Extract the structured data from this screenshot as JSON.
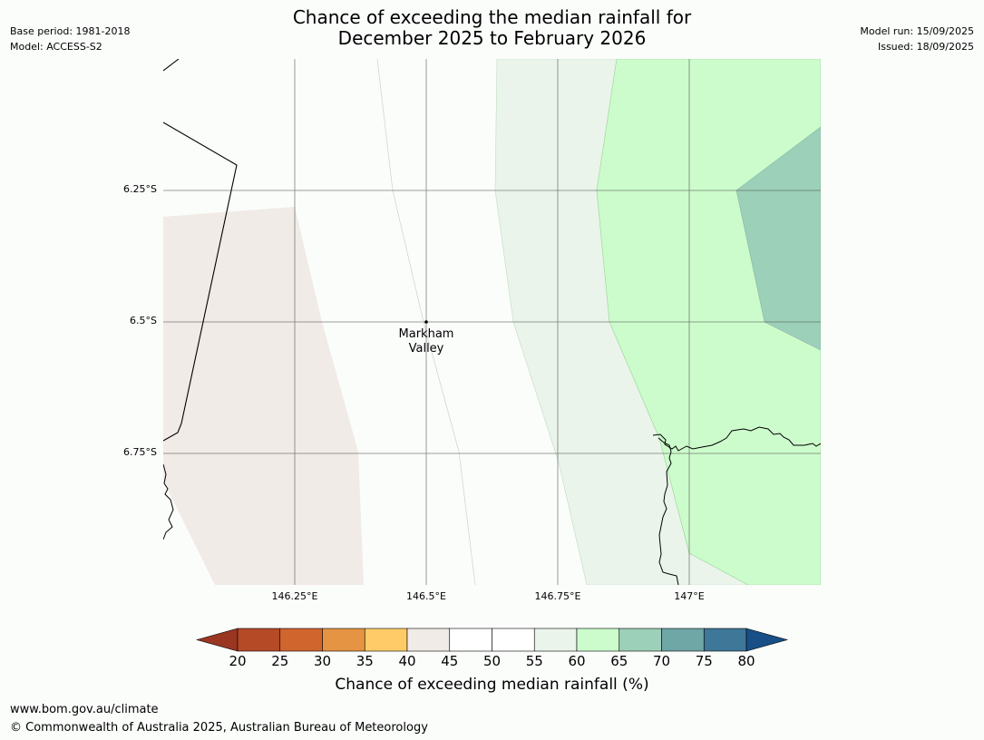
{
  "title": {
    "line1": "Chance of exceeding the median rainfall for",
    "line2": "December 2025 to February 2026"
  },
  "meta_left": {
    "base_period": "Base period: 1981-2018",
    "model": "Model: ACCESS-S2"
  },
  "meta_right": {
    "model_run": "Model run: 15/09/2025",
    "issued": "Issued: 18/09/2025"
  },
  "map": {
    "extent": {
      "lon_min": 146.0,
      "lon_max": 147.25,
      "lat_min": -7.0,
      "lat_max": -6.0
    },
    "latitude_labels": [
      {
        "value": -6.25,
        "label": "6.25°S"
      },
      {
        "value": -6.5,
        "label": "6.5°S"
      },
      {
        "value": -6.75,
        "label": "6.75°S"
      }
    ],
    "longitude_labels": [
      {
        "value": 146.25,
        "label": "146.25°E"
      },
      {
        "value": 146.5,
        "label": "146.5°E"
      },
      {
        "value": 146.75,
        "label": "146.75°E"
      },
      {
        "value": 147.0,
        "label": "147°E"
      }
    ],
    "location": {
      "name_line1": "Markham",
      "name_line2": "Valley",
      "lon": 146.5,
      "lat": -6.5
    },
    "region_colors": {
      "40_45": "#f0ebe6",
      "45_55": "#fbfdfb",
      "55_60": "#eaf4ea",
      "60_65": "#ccfccc",
      "65_70": "#9dd0b8"
    }
  },
  "colorbar": {
    "ticks": [
      "20",
      "25",
      "30",
      "35",
      "40",
      "45",
      "50",
      "55",
      "60",
      "65",
      "70",
      "75",
      "80"
    ],
    "low_extend_color": "#9a3622",
    "high_extend_color": "#174f86",
    "colors": [
      "#b54a27",
      "#d1652e",
      "#e49443",
      "#fecb68",
      "#f0ebe6",
      "#ffffff",
      "#ffffff",
      "#eaf4ea",
      "#ccfccc",
      "#9dd0b8",
      "#6fa6a6",
      "#3e7798"
    ],
    "label": "Chance of exceeding median rainfall (%)"
  },
  "footer": {
    "url": "www.bom.gov.au/climate",
    "copyright": "© Commonwealth of Australia 2025, Australian Bureau of Meteorology"
  }
}
